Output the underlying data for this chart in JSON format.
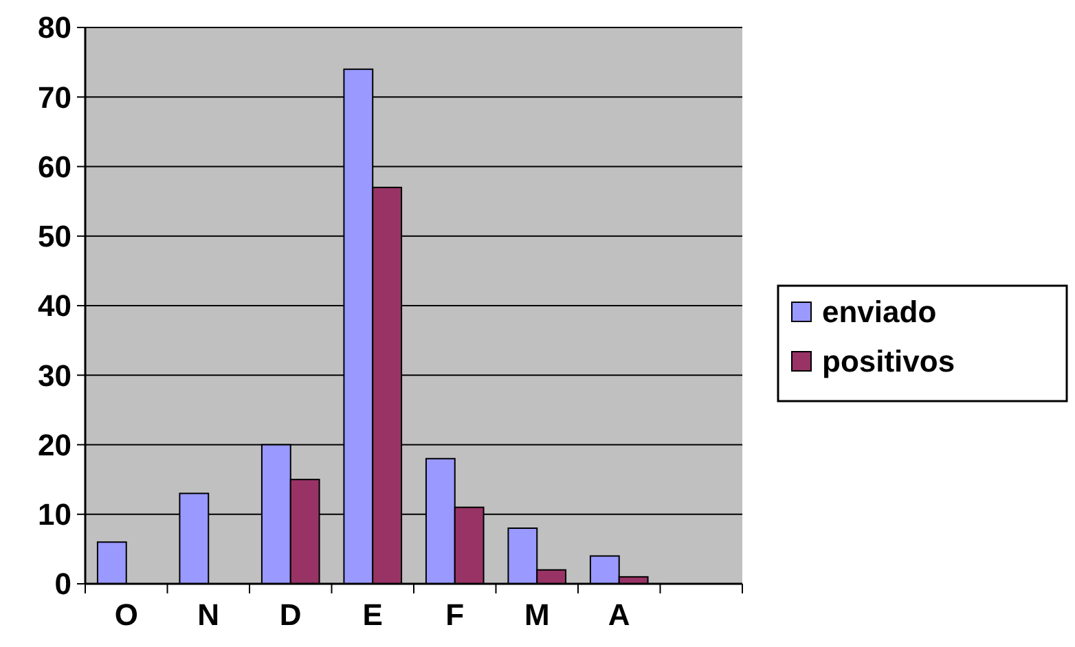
{
  "chart_data": {
    "type": "bar",
    "categories": [
      "O",
      "N",
      "D",
      "E",
      "F",
      "M",
      "A",
      null
    ],
    "series": [
      {
        "name": "enviado",
        "color": "#9999ff",
        "values": [
          6,
          13,
          20,
          74,
          18,
          8,
          4,
          null
        ]
      },
      {
        "name": "positivos",
        "color": "#993366",
        "values": [
          0,
          0,
          15,
          57,
          11,
          2,
          1,
          null
        ]
      }
    ],
    "ylim": [
      0,
      80
    ],
    "yticks": [
      0,
      10,
      20,
      30,
      40,
      50,
      60,
      70,
      80
    ],
    "grid": "y",
    "legend": "right"
  }
}
